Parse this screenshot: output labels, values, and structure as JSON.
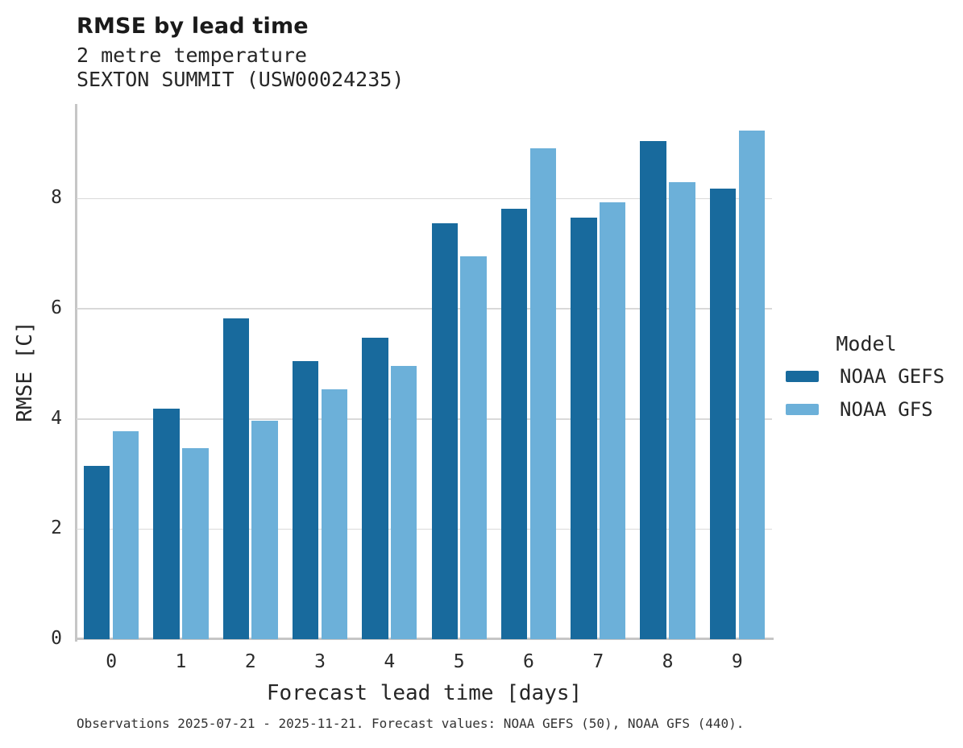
{
  "header": {
    "title": "RMSE by lead time",
    "subtitle_line1": "2 metre temperature",
    "subtitle_line2": "SEXTON SUMMIT (USW00024235)"
  },
  "chart_data": {
    "type": "bar",
    "title": "RMSE by lead time",
    "subtitle": [
      "2 metre temperature",
      "SEXTON SUMMIT (USW00024235)"
    ],
    "categories": [
      "0",
      "1",
      "2",
      "3",
      "4",
      "5",
      "6",
      "7",
      "8",
      "9"
    ],
    "series": [
      {
        "name": "NOAA GEFS",
        "color": "#186a9d",
        "values": [
          3.15,
          4.19,
          5.82,
          5.05,
          5.47,
          7.55,
          7.82,
          7.66,
          9.04,
          8.18
        ]
      },
      {
        "name": "NOAA GFS",
        "color": "#6cb0d9",
        "values": [
          3.77,
          3.47,
          3.97,
          4.54,
          4.96,
          6.95,
          8.91,
          7.94,
          8.3,
          9.23
        ]
      }
    ],
    "xlabel": "Forecast lead time [days]",
    "ylabel": "RMSE [C]",
    "ylim": [
      0,
      9.72
    ],
    "yticks": [
      0,
      2,
      4,
      6,
      8
    ],
    "grid": true,
    "legend_title": "Model",
    "legend_position": "right"
  },
  "legend": {
    "title": "Model",
    "entries": [
      {
        "label": "NOAA GEFS",
        "color": "#186a9d"
      },
      {
        "label": "NOAA GFS",
        "color": "#6cb0d9"
      }
    ]
  },
  "footer": {
    "caption": "Observations 2025-07-21 - 2025-11-21. Forecast values: NOAA GEFS (50), NOAA GFS (440)."
  },
  "colors": {
    "gefs_bar": "#186a9d",
    "gfs_bar": "#6cb0d9",
    "gridline": "#d9d9d9",
    "axis_spine": "#c6c6c6",
    "text": "#262626"
  }
}
